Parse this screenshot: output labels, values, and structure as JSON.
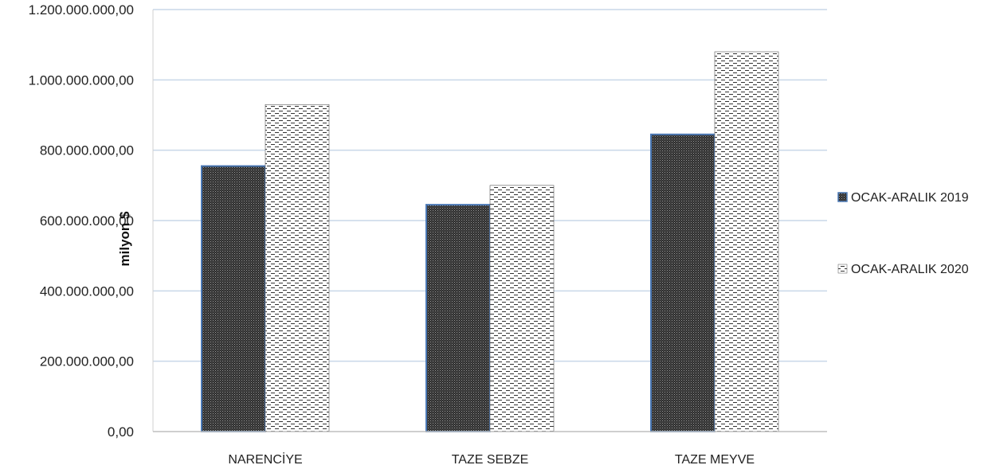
{
  "chart_data": {
    "type": "bar",
    "title": "",
    "xlabel": "",
    "ylabel": "milyon $",
    "categories": [
      "NARENCİYE",
      "TAZE SEBZE",
      "TAZE MEYVE"
    ],
    "series": [
      {
        "name": "OCAK-ARALIK 2019",
        "values": [
          755000000,
          645000000,
          845000000
        ],
        "pattern": "dense-dots",
        "fill": "#3a3a3a",
        "stroke": "#4a78b5"
      },
      {
        "name": "OCAK-ARALIK 2020",
        "values": [
          930000000,
          700000000,
          1080000000
        ],
        "pattern": "dashes",
        "fill": "#ffffff",
        "stroke": "#555555"
      }
    ],
    "ylim": [
      0,
      1200000000
    ],
    "yticks": [
      {
        "value": 0,
        "label": "0,00"
      },
      {
        "value": 200000000,
        "label": "200.000.000,00"
      },
      {
        "value": 400000000,
        "label": "400.000.000,00"
      },
      {
        "value": 600000000,
        "label": "600.000.000,00"
      },
      {
        "value": 800000000,
        "label": "800.000.000,00"
      },
      {
        "value": 1000000000,
        "label": "1.000.000.000,00"
      },
      {
        "value": 1200000000,
        "label": "1.200.000.000,00"
      }
    ],
    "grid": true,
    "gridColor": "#c9d7e8",
    "legend": "right"
  }
}
